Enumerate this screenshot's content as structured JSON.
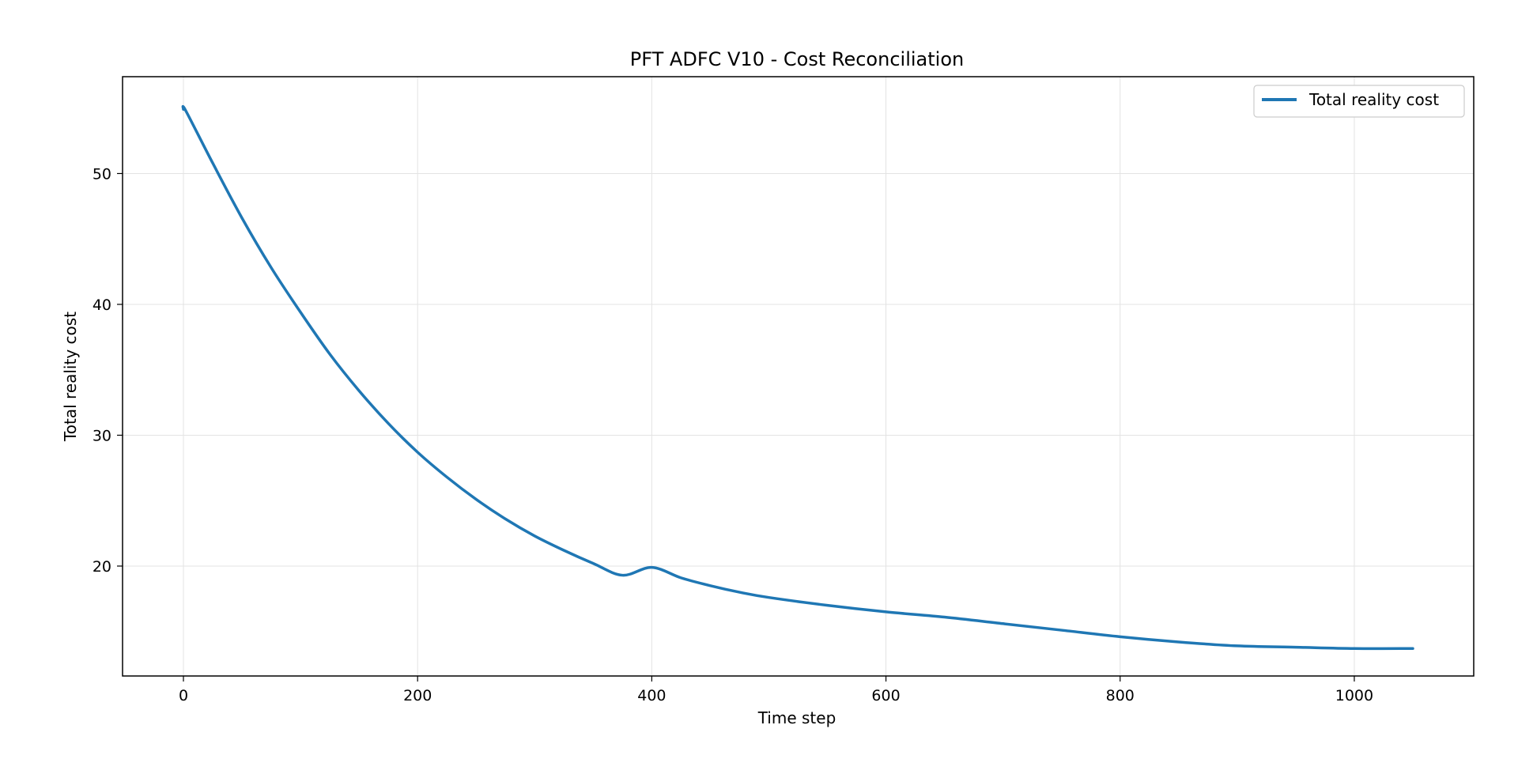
{
  "chart_data": {
    "type": "line",
    "title": "PFT ADFC V10 - Cost Reconciliation",
    "xlabel": "Time step",
    "ylabel": "Total reality cost",
    "xlim": [
      -52,
      1102
    ],
    "ylim": [
      11.6,
      57.4
    ],
    "xticks": [
      0,
      200,
      400,
      600,
      800,
      1000
    ],
    "yticks": [
      20,
      30,
      40,
      50
    ],
    "grid": true,
    "legend_position": "top-right",
    "series": [
      {
        "name": "Total reality cost",
        "color": "#1f77b4",
        "x": [
          0,
          2,
          25,
          50,
          75,
          100,
          125,
          150,
          175,
          200,
          225,
          250,
          275,
          300,
          325,
          350,
          375,
          400,
          425,
          450,
          475,
          500,
          550,
          600,
          650,
          700,
          750,
          800,
          850,
          900,
          950,
          1000,
          1050
        ],
        "y": [
          54.9,
          54.8,
          50.8,
          46.6,
          42.8,
          39.4,
          36.2,
          33.4,
          30.9,
          28.7,
          26.8,
          25.1,
          23.6,
          22.3,
          21.2,
          20.2,
          19.3,
          19.9,
          19.1,
          18.5,
          18.0,
          17.6,
          17.0,
          16.5,
          16.1,
          15.6,
          15.1,
          14.6,
          14.2,
          13.9,
          13.8,
          13.7,
          13.7
        ]
      }
    ]
  }
}
